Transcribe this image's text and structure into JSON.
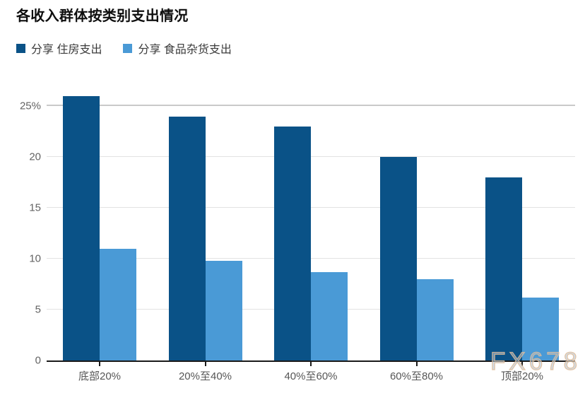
{
  "title": "各收入群体按类别支出情况",
  "watermark": "FX678",
  "colors": {
    "housing": "#0a5287",
    "groceries": "#4a9ad6",
    "axis_line": "#1a1a1a",
    "grid": "#e3e3e3",
    "grid_top": "#c9c9c9",
    "axis_text": "#636363"
  },
  "chart_data": {
    "type": "bar",
    "title": "各收入群体按类别支出情况",
    "categories": [
      "底部20%",
      "20%至40%",
      "40%至60%",
      "60%至80%",
      "顶部20%"
    ],
    "series": [
      {
        "name": "分享 住房支出",
        "color": "#0a5287",
        "values": [
          26,
          24,
          23,
          20,
          18
        ]
      },
      {
        "name": "分享 食品杂货支出",
        "color": "#4a9ad6",
        "values": [
          11,
          9.8,
          8.7,
          8,
          6.2
        ]
      }
    ],
    "y_ticks": [
      {
        "value": 0,
        "label": "0"
      },
      {
        "value": 5,
        "label": "5"
      },
      {
        "value": 10,
        "label": "10"
      },
      {
        "value": 15,
        "label": "15"
      },
      {
        "value": 20,
        "label": "20"
      },
      {
        "value": 25,
        "label": "25%"
      }
    ],
    "ylim": [
      0,
      26.4
    ],
    "xlabel": "",
    "ylabel": "",
    "grid": "horizontal",
    "legend_position": "top-left"
  }
}
